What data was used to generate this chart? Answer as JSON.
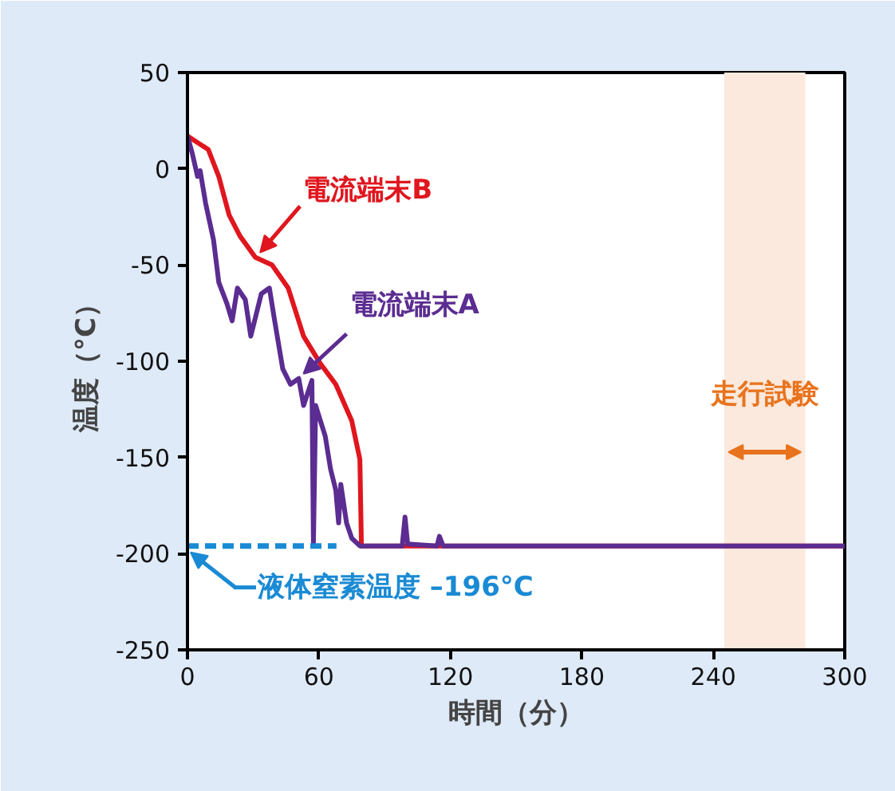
{
  "chart_data": {
    "type": "line",
    "xlabel": "時間（分）",
    "ylabel": "温度（°C）",
    "xlim": [
      0,
      300
    ],
    "xticks": [
      0,
      60,
      120,
      180,
      240,
      300
    ],
    "ylim": [
      -250,
      50
    ],
    "yticks": [
      50,
      0,
      -50,
      -100,
      -150,
      -200,
      -250
    ],
    "grid": false,
    "line_style": "solid",
    "series": [
      {
        "name": "電流端末B",
        "color": "#e0161e",
        "x": [
          0,
          9.5,
          14.3,
          19,
          24,
          31,
          38.6,
          46,
          53,
          60.5,
          67.7,
          75,
          78.7,
          79.4,
          100,
          200,
          300
        ],
        "values": [
          17,
          10,
          -4,
          -24,
          -35,
          -46,
          -50,
          -62,
          -87,
          -101,
          -112,
          -131,
          -151,
          -196,
          -196,
          -196,
          -196
        ]
      },
      {
        "name": "電流端末A",
        "color": "#5b2c91",
        "x": [
          0,
          2.2,
          4.6,
          5.8,
          8.3,
          11.9,
          14.3,
          18,
          20.4,
          22.8,
          26.4,
          28.9,
          33.7,
          37.4,
          39.8,
          43.5,
          47,
          50.8,
          53,
          56.8,
          57.5,
          58.5,
          62.9,
          65.3,
          67.7,
          69,
          70,
          72.6,
          75,
          78.7,
          98,
          99.3,
          100.5,
          113.9,
          115,
          116.7,
          200,
          300
        ],
        "values": [
          17,
          8,
          -4,
          -1,
          -18,
          -37,
          -59,
          -70,
          -79,
          -62,
          -68,
          -87,
          -65,
          -62,
          -79,
          -104,
          -112,
          -109,
          -123,
          -110,
          -195,
          -123,
          -139,
          -156,
          -167,
          -184,
          -164,
          -184,
          -192,
          -196,
          -196,
          -181,
          -195,
          -196,
          -191,
          -196,
          -196,
          -196
        ]
      },
      {
        "color": "#1a8ad4",
        "line_style": "dashed",
        "x": [
          0,
          68
        ],
        "values": [
          -196,
          -196
        ]
      }
    ],
    "annotations": [
      {
        "text": "液体窒素温度 –196°C",
        "x": 0,
        "y": -196
      }
    ],
    "bands": [
      {
        "axis": "x",
        "from": 245,
        "to": 282,
        "label": "走行試験",
        "color": "#fbe9dd"
      }
    ]
  }
}
